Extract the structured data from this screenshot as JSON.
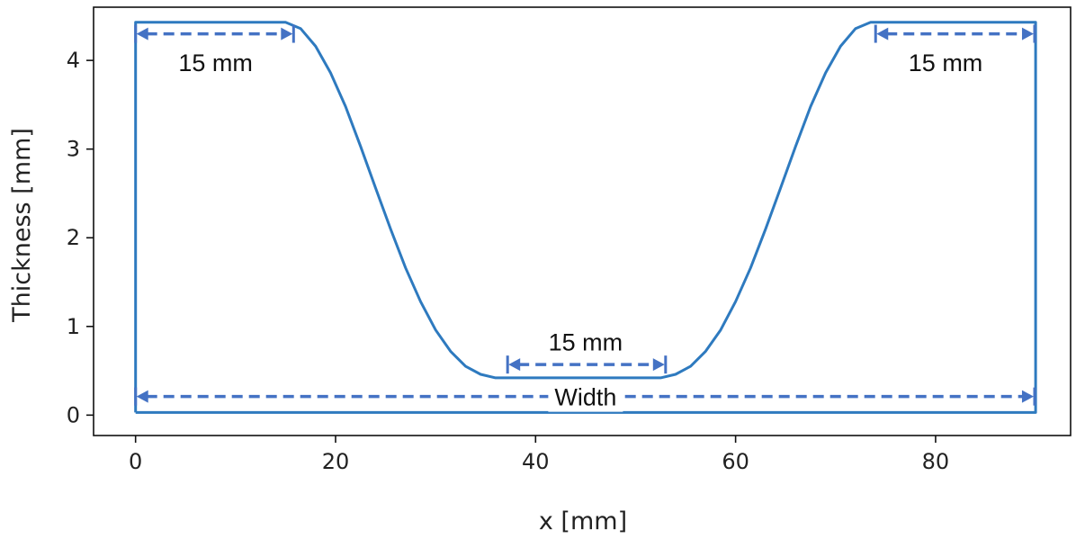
{
  "chart_data": {
    "type": "line",
    "title": "",
    "xlabel": "x [mm]",
    "ylabel": "Thickness [mm]",
    "xlim": [
      -4.2,
      93.5
    ],
    "ylim": [
      -0.23,
      4.6
    ],
    "grid": false,
    "x_ticks": [
      0,
      20,
      40,
      60,
      80
    ],
    "x_tick_labels": [
      "0",
      "20",
      "40",
      "60",
      "80"
    ],
    "y_ticks": [
      0,
      1,
      2,
      3,
      4
    ],
    "y_tick_labels": [
      "0",
      "1",
      "2",
      "3",
      "4"
    ],
    "series": [
      {
        "color": "#2e7abf",
        "x": [
          0,
          0,
          15,
          16.5,
          18,
          19.5,
          21,
          22.5,
          24,
          25.5,
          27,
          28.5,
          30,
          31.5,
          33,
          34.5,
          36,
          37.5,
          52.5,
          54,
          55.5,
          57,
          58.5,
          60,
          61.5,
          63,
          64.5,
          66,
          67.5,
          69,
          70.5,
          72,
          73.5,
          75,
          90,
          90,
          0
        ],
        "y": [
          0.03,
          4.43,
          4.43,
          4.36,
          4.16,
          3.86,
          3.48,
          3.03,
          2.56,
          2.1,
          1.66,
          1.28,
          0.96,
          0.72,
          0.55,
          0.46,
          0.42,
          0.42,
          0.42,
          0.46,
          0.55,
          0.72,
          0.96,
          1.28,
          1.66,
          2.1,
          2.56,
          3.03,
          3.48,
          3.86,
          4.16,
          4.36,
          4.43,
          4.43,
          4.43,
          0.03,
          0.03
        ]
      }
    ],
    "annotations": [
      {
        "label": "15 mm",
        "x_start": 0,
        "x_end": 15.8,
        "y": 4.3,
        "label_x": 8.0,
        "label_y": 3.97
      },
      {
        "label": "15 mm",
        "x_start": 74.0,
        "x_end": 89.9,
        "y": 4.3,
        "label_x": 81.0,
        "label_y": 3.97
      },
      {
        "label": "15 mm",
        "x_start": 37.2,
        "x_end": 53.0,
        "y": 0.57,
        "label_x": 45.0,
        "label_y": 0.82
      },
      {
        "label": "Width",
        "x_start": 0,
        "x_end": 89.9,
        "y": 0.21,
        "label_x": 45.0,
        "label_y": 0.2
      }
    ],
    "annotation_color": "#4472c4"
  }
}
